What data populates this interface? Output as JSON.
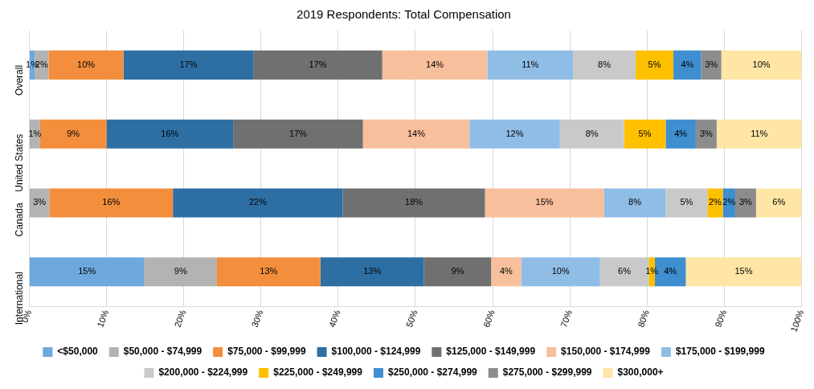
{
  "chart_data": {
    "type": "bar",
    "title": "2019 Respondents: Total Compensation",
    "orientation": "horizontal",
    "stacked": true,
    "data_labels": true,
    "grid": true,
    "legend": "bottom",
    "categories": [
      "Overall",
      "United States",
      "Canada",
      "International"
    ],
    "xlim": [
      0,
      100
    ],
    "xticks": [
      {
        "value": 0,
        "label": "0%"
      },
      {
        "value": 10,
        "label": "10%"
      },
      {
        "value": 20,
        "label": "20%"
      },
      {
        "value": 30,
        "label": "30%"
      },
      {
        "value": 40,
        "label": "40%"
      },
      {
        "value": 50,
        "label": "50%"
      },
      {
        "value": 60,
        "label": "60%"
      },
      {
        "value": 70,
        "label": "70%"
      },
      {
        "value": 80,
        "label": "80%"
      },
      {
        "value": 90,
        "label": "90%"
      },
      {
        "value": 100,
        "label": "100%"
      }
    ],
    "series": [
      {
        "name": "<$50,000",
        "color": "#6fa8dc",
        "values": [
          0.7,
          null,
          null,
          14.9
        ],
        "value_labels": [
          "1%",
          null,
          null,
          "15%"
        ]
      },
      {
        "name": "$50,000 - $74,999",
        "color": "#b3b3b3",
        "values": [
          1.8,
          1.4,
          2.6,
          9.4
        ],
        "value_labels": [
          "2%",
          "1%",
          "3%",
          "9%"
        ]
      },
      {
        "name": "$75,000 - $99,999",
        "color": "#f28e3c",
        "values": [
          9.7,
          8.6,
          16.0,
          13.4
        ],
        "value_labels": [
          "10%",
          "9%",
          "16%",
          "13%"
        ]
      },
      {
        "name": "$100,000 - $124,999",
        "color": "#2e6fa3",
        "values": [
          16.8,
          16.4,
          22.0,
          13.4
        ],
        "value_labels": [
          "17%",
          "16%",
          "22%",
          "13%"
        ]
      },
      {
        "name": "$125,000 - $149,999",
        "color": "#707070",
        "values": [
          16.7,
          16.8,
          18.4,
          8.7
        ],
        "value_labels": [
          "17%",
          "17%",
          "18%",
          "9%"
        ]
      },
      {
        "name": "$150,000 - $174,999",
        "color": "#f7bf9b",
        "values": [
          13.6,
          13.8,
          15.4,
          3.9
        ],
        "value_labels": [
          "14%",
          "14%",
          "15%",
          "4%"
        ]
      },
      {
        "name": "$175,000 - $199,999",
        "color": "#8fbde6",
        "values": [
          11.1,
          11.7,
          8.0,
          10.2
        ],
        "value_labels": [
          "11%",
          "12%",
          "8%",
          "10%"
        ]
      },
      {
        "name": "$200,000 - $224,999",
        "color": "#c9c9c9",
        "values": [
          8.1,
          8.3,
          5.4,
          6.3
        ],
        "value_labels": [
          "8%",
          "8%",
          "5%",
          "6%"
        ]
      },
      {
        "name": "$225,000 - $249,999",
        "color": "#ffc000",
        "values": [
          4.9,
          5.4,
          2.0,
          0.8
        ],
        "value_labels": [
          "5%",
          "5%",
          "2%",
          "1%"
        ]
      },
      {
        "name": "$250,000 - $274,999",
        "color": "#3e8ed0",
        "values": [
          3.6,
          3.9,
          1.6,
          4.0
        ],
        "value_labels": [
          "4%",
          "4%",
          "2%",
          "4%"
        ]
      },
      {
        "name": "$275,000 - $299,999",
        "color": "#8c8c8c",
        "values": [
          2.6,
          2.7,
          2.7,
          null
        ],
        "value_labels": [
          "3%",
          "3%",
          "3%",
          null
        ]
      },
      {
        "name": "$300,000+",
        "color": "#ffe6a6",
        "values": [
          10.4,
          11.0,
          5.9,
          15.0
        ],
        "value_labels": [
          "10%",
          "11%",
          "6%",
          "15%"
        ]
      }
    ]
  }
}
